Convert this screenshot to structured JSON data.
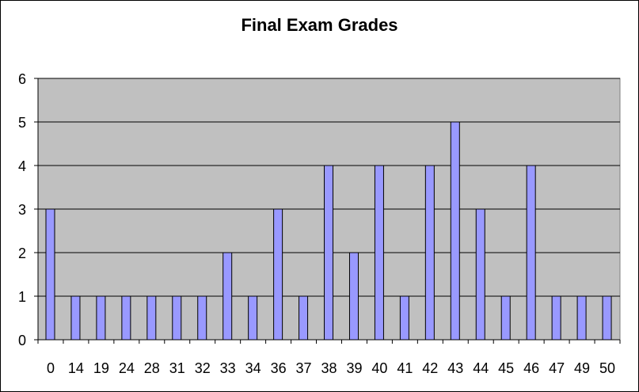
{
  "chart_data": {
    "type": "bar",
    "title": "Final Exam Grades",
    "xlabel": "",
    "ylabel": "",
    "categories": [
      "0",
      "14",
      "19",
      "24",
      "28",
      "31",
      "32",
      "33",
      "34",
      "36",
      "37",
      "38",
      "39",
      "40",
      "41",
      "42",
      "43",
      "44",
      "45",
      "46",
      "47",
      "49",
      "50"
    ],
    "values": [
      3,
      1,
      1,
      1,
      1,
      1,
      1,
      2,
      1,
      3,
      1,
      4,
      2,
      4,
      1,
      4,
      5,
      3,
      1,
      4,
      1,
      1,
      1
    ],
    "ylim": [
      0,
      6
    ],
    "yticks": [
      "0",
      "1",
      "2",
      "3",
      "4",
      "5",
      "6"
    ],
    "grid": true,
    "legend": "none",
    "colors": {
      "plot_background": "#c0c0c0",
      "bar_fill": "#9999ff",
      "bar_stroke": "#000000",
      "gridline": "#000000"
    }
  }
}
